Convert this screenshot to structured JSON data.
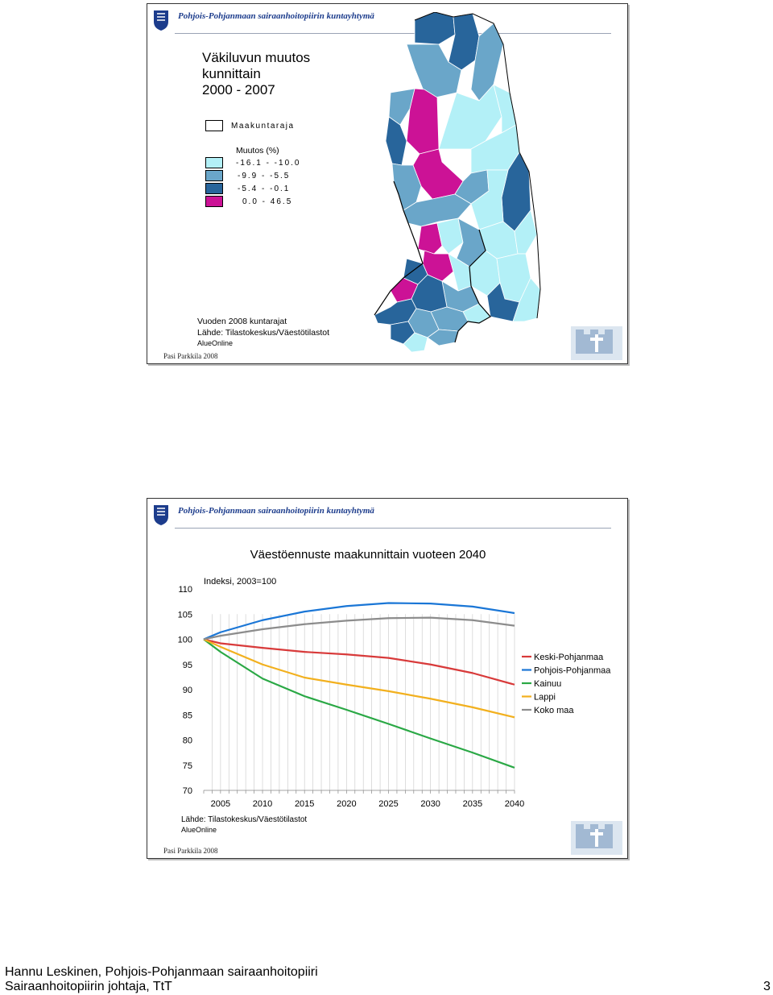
{
  "slide1": {
    "header_text": "Pohjois-Pohjanmaan sairaanhoitopiirin kuntayhtymä",
    "title_lines": [
      "Väkiluvun muutos",
      "kunnittain",
      "2000 - 2007"
    ],
    "boundary_legend": "Maakuntaraja",
    "legend_title": "Muutos (%)",
    "legend_items": [
      {
        "label": "-16.1 - -10.0",
        "color": "#b3f0f7"
      },
      {
        "label": "-9.9 - -5.5",
        "color": "#6aa6c9"
      },
      {
        "label": "-5.4 - -0.1",
        "color": "#28659b"
      },
      {
        "label": "0.0 - 46.5",
        "color": "#cc1296"
      }
    ],
    "source_lines": [
      "Vuoden 2008 kuntarajat",
      "Lähde: Tilastokeskus/Väestötilastot"
    ],
    "alueonline": "AlueOnline",
    "credit": "Pasi Parkkila 2008"
  },
  "slide2": {
    "header_text": "Pohjois-Pohjanmaan sairaanhoitopiirin kuntayhtymä",
    "source": "Lähde: Tilastokeskus/Väestötilastot",
    "alueonline": "AlueOnline",
    "credit": "Pasi Parkkila 2008"
  },
  "chart_data": {
    "type": "line",
    "title": "Väestöennuste maakunnittain vuoteen 2040",
    "subtitle": "Indeksi, 2003=100",
    "x": [
      2003,
      2005,
      2010,
      2015,
      2020,
      2025,
      2030,
      2035,
      2040
    ],
    "x_ticks": [
      2005,
      2010,
      2015,
      2020,
      2025,
      2030,
      2035,
      2040
    ],
    "xlim": [
      2003,
      2040
    ],
    "ylim": [
      70,
      110
    ],
    "y_ticks": [
      70,
      75,
      80,
      85,
      90,
      95,
      100,
      105,
      110
    ],
    "grid": "vertical",
    "legend": "right",
    "series": [
      {
        "name": "Keski-Pohjanmaa",
        "color": "#d83a3a",
        "values": [
          100,
          99.2,
          98.3,
          97.5,
          97.0,
          96.3,
          95.0,
          93.3,
          91.0
        ]
      },
      {
        "name": "Pohjois-Pohjanmaa",
        "color": "#1a76d6",
        "values": [
          100,
          101.4,
          103.8,
          105.5,
          106.6,
          107.2,
          107.1,
          106.5,
          105.2
        ]
      },
      {
        "name": "Kainuu",
        "color": "#2aa845",
        "values": [
          100,
          97.5,
          92.2,
          88.7,
          86.0,
          83.2,
          80.3,
          77.5,
          74.5
        ]
      },
      {
        "name": "Lappi",
        "color": "#f2b01e",
        "values": [
          100,
          98.5,
          95.0,
          92.4,
          91.0,
          89.7,
          88.2,
          86.5,
          84.5
        ]
      },
      {
        "name": "Koko maa",
        "color": "#8c8c8c",
        "values": [
          100,
          100.7,
          102.0,
          103.0,
          103.7,
          104.2,
          104.3,
          103.8,
          102.7
        ]
      }
    ]
  },
  "footer": {
    "line1": "Hannu Leskinen, Pohjois-Pohjanmaan sairaanhoitopiiri",
    "line2": "Sairaanhoitopiirin johtaja, TtT",
    "page_number": "3"
  }
}
